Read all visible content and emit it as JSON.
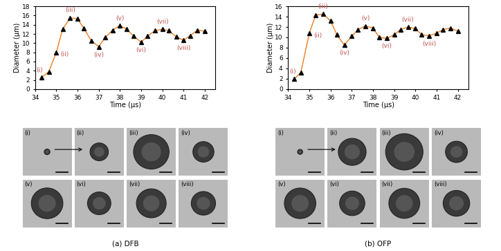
{
  "chart_data": [
    {
      "type": "line",
      "title": "(a) DFB",
      "x_label": "Time (μs)",
      "y_label": "Diameter (μm)",
      "x": [
        34.3,
        34.65,
        35.0,
        35.3,
        35.65,
        36.0,
        36.3,
        36.65,
        37.0,
        37.3,
        37.65,
        38.0,
        38.3,
        38.65,
        39.0,
        39.3,
        39.65,
        40.0,
        40.3,
        40.65,
        41.0,
        41.3,
        41.65,
        42.0
      ],
      "series": [
        {
          "name": "DFB",
          "color": "#f07d1e",
          "marker": "^",
          "values": [
            2.5,
            3.8,
            8,
            13,
            15.5,
            15.3,
            13.2,
            10.5,
            9.2,
            11.2,
            12.8,
            13.8,
            13.1,
            11.5,
            10.2,
            11.5,
            12.7,
            13,
            12.7,
            11.4,
            10.6,
            11.6,
            12.8,
            12.6
          ]
        }
      ],
      "annotations": [
        {
          "x": 34.3,
          "y": 2.5,
          "text": "(i)"
        },
        {
          "x": 35.0,
          "y": 8,
          "text": "(ii)"
        },
        {
          "x": 35.65,
          "y": 15.5,
          "text": "(iii)"
        },
        {
          "x": 37.0,
          "y": 9.2,
          "text": "(iv)"
        },
        {
          "x": 38.0,
          "y": 13.8,
          "text": "(v)"
        },
        {
          "x": 39.0,
          "y": 10.2,
          "text": "(vi)"
        },
        {
          "x": 40.0,
          "y": 13,
          "text": "(vii)"
        },
        {
          "x": 41.0,
          "y": 10.6,
          "text": "(viii)"
        }
      ],
      "xlim": [
        34,
        42.5
      ],
      "ylim": [
        0,
        18
      ],
      "xticks": [
        34,
        35,
        36,
        37,
        38,
        39,
        40,
        41,
        42
      ],
      "yticks": [
        0,
        2,
        4,
        6,
        8,
        10,
        12,
        14,
        16,
        18
      ],
      "grid": false
    },
    {
      "type": "line",
      "title": "(b) OFP",
      "x_label": "Time (μs)",
      "y_label": "Diameter (μm)",
      "x": [
        34.3,
        34.6,
        35.0,
        35.3,
        35.65,
        36.0,
        36.3,
        36.65,
        37.0,
        37.3,
        37.65,
        38.0,
        38.3,
        38.65,
        39.0,
        39.3,
        39.65,
        40.0,
        40.3,
        40.65,
        41.0,
        41.3,
        41.65,
        42.0
      ],
      "series": [
        {
          "name": "OFP",
          "color": "#f07d1e",
          "marker": "^",
          "values": [
            2,
            3.2,
            10.8,
            14.3,
            14.5,
            13.2,
            10.5,
            8.5,
            10.2,
            11.5,
            12.2,
            11.8,
            10,
            9.8,
            10.5,
            11.5,
            12,
            11.7,
            10.5,
            10.3,
            10.8,
            11.5,
            11.8,
            11.2
          ]
        }
      ],
      "annotations": [
        {
          "x": 34.3,
          "y": 2,
          "text": "(i)"
        },
        {
          "x": 35.0,
          "y": 10.8,
          "text": "(ii)"
        },
        {
          "x": 35.65,
          "y": 14.5,
          "text": "(iii)"
        },
        {
          "x": 36.65,
          "y": 8.5,
          "text": "(iv)"
        },
        {
          "x": 37.65,
          "y": 12.2,
          "text": "(v)"
        },
        {
          "x": 38.65,
          "y": 9.8,
          "text": "(vi)"
        },
        {
          "x": 39.65,
          "y": 12,
          "text": "(vii)"
        },
        {
          "x": 40.65,
          "y": 10.3,
          "text": "(viii)"
        }
      ],
      "xlim": [
        34,
        42.5
      ],
      "ylim": [
        0,
        16
      ],
      "xticks": [
        34,
        35,
        36,
        37,
        38,
        39,
        40,
        41,
        42
      ],
      "yticks": [
        0,
        2,
        4,
        6,
        8,
        10,
        12,
        14,
        16
      ],
      "grid": false
    }
  ]
}
